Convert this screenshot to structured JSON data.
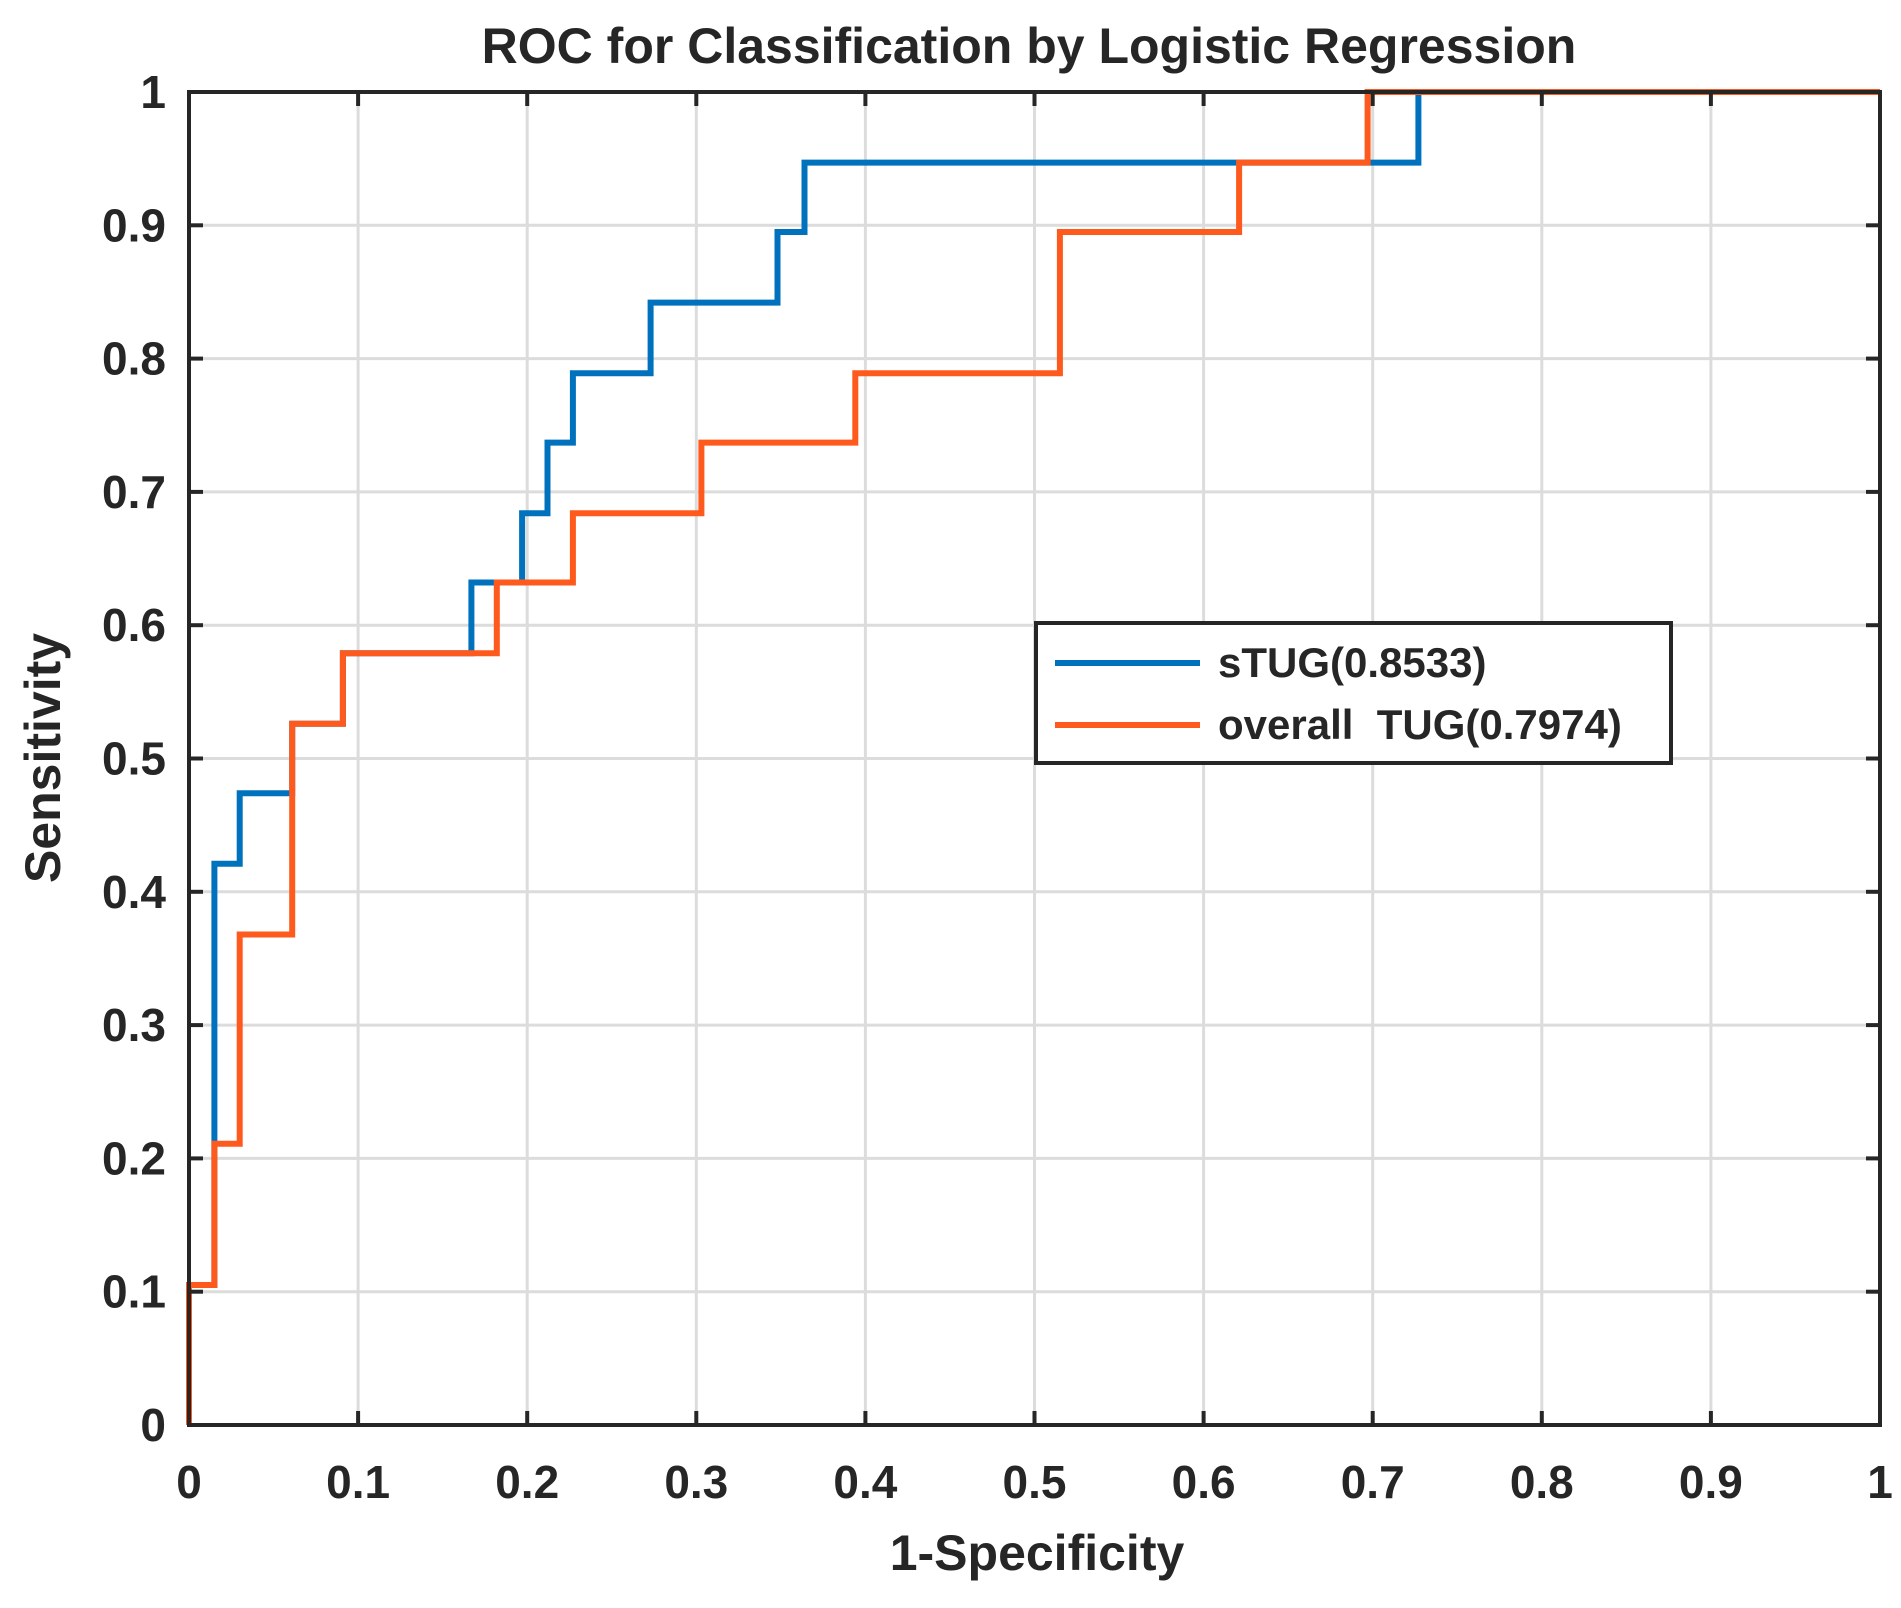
{
  "chart_data": {
    "type": "line",
    "title": "ROC for Classification by Logistic Regression",
    "xlabel": "1-Specificity",
    "ylabel": "Sensitivity",
    "xlim": [
      0,
      1
    ],
    "ylim": [
      0,
      1
    ],
    "grid": true,
    "legend_position": "right-center",
    "x_ticks": [
      0,
      0.1,
      0.2,
      0.3,
      0.4,
      0.5,
      0.6,
      0.7,
      0.8,
      0.9,
      1
    ],
    "x_tick_labels": [
      "0",
      "0.1",
      "0.2",
      "0.3",
      "0.4",
      "0.5",
      "0.6",
      "0.7",
      "0.8",
      "0.9",
      "1"
    ],
    "y_ticks": [
      0,
      0.1,
      0.2,
      0.3,
      0.4,
      0.5,
      0.6,
      0.7,
      0.8,
      0.9,
      1
    ],
    "y_tick_labels": [
      "0",
      "0.1",
      "0.2",
      "0.3",
      "0.4",
      "0.5",
      "0.6",
      "0.7",
      "0.8",
      "0.9",
      "1"
    ],
    "series": [
      {
        "name": "sTUG(0.8533)",
        "color": "#0072BD",
        "x": [
          0,
          0,
          0.015,
          0.015,
          0.03,
          0.03,
          0.061,
          0.061,
          0.091,
          0.091,
          0.167,
          0.167,
          0.182,
          0.182,
          0.197,
          0.197,
          0.212,
          0.212,
          0.227,
          0.227,
          0.273,
          0.273,
          0.348,
          0.348,
          0.364,
          0.364,
          0.727,
          0.727,
          1
        ],
        "y": [
          0,
          0.105,
          0.105,
          0.421,
          0.421,
          0.474,
          0.474,
          0.526,
          0.526,
          0.579,
          0.579,
          0.632,
          0.632,
          0.632,
          0.632,
          0.684,
          0.684,
          0.737,
          0.737,
          0.789,
          0.789,
          0.842,
          0.842,
          0.895,
          0.895,
          0.947,
          0.947,
          1,
          1
        ]
      },
      {
        "name": "overall  TUG(0.7974)",
        "color": "#FF5A1E",
        "x": [
          0,
          0,
          0.015,
          0.015,
          0.03,
          0.03,
          0.061,
          0.061,
          0.091,
          0.091,
          0.182,
          0.182,
          0.227,
          0.227,
          0.303,
          0.303,
          0.394,
          0.394,
          0.515,
          0.515,
          0.621,
          0.621,
          0.697,
          0.697,
          1
        ],
        "y": [
          0,
          0.105,
          0.105,
          0.211,
          0.211,
          0.368,
          0.368,
          0.526,
          0.526,
          0.579,
          0.579,
          0.632,
          0.632,
          0.684,
          0.684,
          0.737,
          0.737,
          0.789,
          0.789,
          0.895,
          0.895,
          0.947,
          0.947,
          1,
          1
        ]
      }
    ]
  }
}
